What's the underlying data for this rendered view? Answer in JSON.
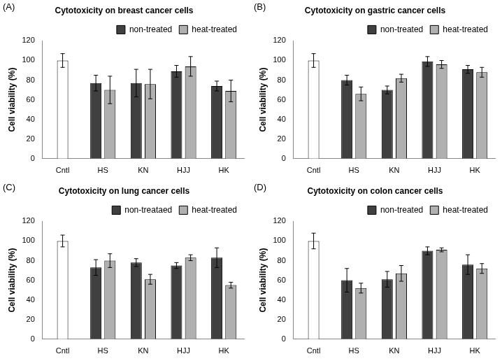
{
  "chart_data": [
    {
      "type": "bar",
      "annotations": [
        "(A)"
      ],
      "title": "Cytotoxicity on breast cancer cells",
      "y_label": "Cell viability (%)",
      "categories": [
        "Cntl",
        "HS",
        "KN",
        "HJJ",
        "HK"
      ],
      "series": [
        {
          "color": "#ffffff",
          "values": [
            100,
            null,
            null,
            null,
            null
          ],
          "errors": [
            7,
            null,
            null,
            null,
            null
          ]
        },
        {
          "name": "non-treated",
          "color": "#404040",
          "values": [
            null,
            77,
            77,
            89,
            74
          ],
          "errors": [
            null,
            8,
            14,
            6,
            5
          ]
        },
        {
          "name": "heat-treated",
          "color": "#b0b0b0",
          "values": [
            null,
            70,
            76,
            94,
            69
          ],
          "errors": [
            null,
            14,
            15,
            10,
            11
          ]
        }
      ],
      "ylim": [
        0,
        120
      ],
      "yticks": [
        0,
        20,
        40,
        60,
        80,
        100,
        120
      ],
      "grid": false,
      "legend": "top"
    },
    {
      "type": "bar",
      "annotations": [
        "(B)"
      ],
      "title": "Cytotoxicity on gastric cancer cells",
      "y_label": "Cell viability (%)",
      "categories": [
        "Cntl",
        "HS",
        "KN",
        "HJJ",
        "HK"
      ],
      "series": [
        {
          "color": "#ffffff",
          "values": [
            100,
            null,
            null,
            null,
            null
          ],
          "errors": [
            7,
            null,
            null,
            null,
            null
          ]
        },
        {
          "name": "non-treated",
          "color": "#404040",
          "values": [
            null,
            80,
            70,
            99,
            91
          ],
          "errors": [
            null,
            5,
            4,
            5,
            4
          ]
        },
        {
          "name": "heat-treated",
          "color": "#b0b0b0",
          "values": [
            null,
            66,
            82,
            96,
            88
          ],
          "errors": [
            null,
            7,
            4,
            4,
            5
          ]
        }
      ],
      "ylim": [
        0,
        120
      ],
      "yticks": [
        0,
        20,
        40,
        60,
        80,
        100,
        120
      ],
      "grid": false,
      "legend": "top"
    },
    {
      "type": "bar",
      "annotations": [
        "(C)"
      ],
      "title": "Cytotoxicity on lung cancer cells",
      "y_label": "Cell viability (%)",
      "categories": [
        "Cntl",
        "HS",
        "KN",
        "HJJ",
        "HK"
      ],
      "series": [
        {
          "color": "#ffffff",
          "values": [
            100,
            null,
            null,
            null,
            null
          ],
          "errors": [
            6,
            null,
            null,
            null,
            null
          ]
        },
        {
          "name": "non-treataed",
          "color": "#404040",
          "values": [
            null,
            73,
            78,
            75,
            83
          ],
          "errors": [
            null,
            8,
            4,
            3,
            10
          ]
        },
        {
          "name": "heat-treated",
          "color": "#b0b0b0",
          "values": [
            null,
            80,
            61,
            83,
            55
          ],
          "errors": [
            null,
            7,
            5,
            3,
            3
          ]
        }
      ],
      "ylim": [
        0,
        120
      ],
      "yticks": [
        0,
        20,
        40,
        60,
        80,
        100,
        120
      ],
      "grid": false,
      "legend": "top"
    },
    {
      "type": "bar",
      "annotations": [
        "(D)"
      ],
      "title": "Cytotoxicity on colon cancer cells",
      "y_label": "Cell viability (%)",
      "categories": [
        "Cntl",
        "HS",
        "KN",
        "HJJ",
        "HK"
      ],
      "series": [
        {
          "color": "#ffffff",
          "values": [
            100,
            null,
            null,
            null,
            null
          ],
          "errors": [
            8,
            null,
            null,
            null,
            null
          ]
        },
        {
          "name": "non-treated",
          "color": "#404040",
          "values": [
            null,
            60,
            61,
            90,
            76
          ],
          "errors": [
            null,
            12,
            8,
            4,
            10
          ]
        },
        {
          "name": "heat-treated",
          "color": "#b0b0b0",
          "values": [
            null,
            52,
            67,
            91,
            72
          ],
          "errors": [
            null,
            5,
            8,
            2,
            5
          ]
        }
      ],
      "ylim": [
        0,
        120
      ],
      "yticks": [
        0,
        20,
        40,
        60,
        80,
        100,
        120
      ],
      "grid": false,
      "legend": "top"
    }
  ]
}
